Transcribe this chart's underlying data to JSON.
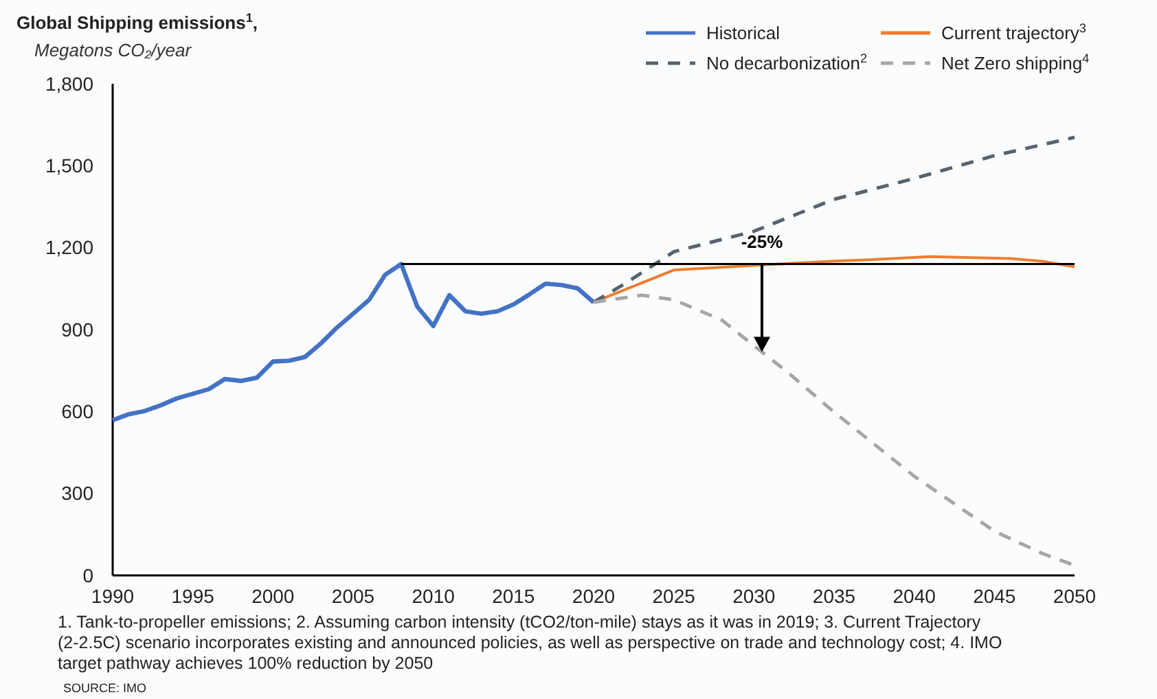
{
  "chart_data": {
    "type": "line",
    "title": "Global Shipping emissions$^{1}$,",
    "ylabel": "Megatons CO₂/year",
    "xlim": [
      1990,
      2050
    ],
    "xticks": [
      1990,
      1995,
      2000,
      2005,
      2010,
      2015,
      2020,
      2025,
      2030,
      2035,
      2040,
      2045,
      2050
    ],
    "ylim": [
      0,
      1800
    ],
    "yticks": [
      0,
      300,
      600,
      900,
      {
        "value": 1200,
        "label": "1,200"
      },
      {
        "value": 1500,
        "label": "1,500"
      },
      {
        "value": 1800,
        "label": "1,800"
      }
    ],
    "grid": false,
    "legend": "top right",
    "marker": "none",
    "series": [
      {
        "name": "Historical",
        "color": "#4472c4",
        "line_style": "solid",
        "x": [
          1990,
          1991,
          1992,
          1993,
          1994,
          1995,
          1996,
          1997,
          1998,
          1999,
          2000,
          2001,
          2002,
          2003,
          2004,
          2005,
          2006,
          2007,
          2008,
          2009,
          2010,
          2011,
          2012,
          2013,
          2014,
          2015,
          2016,
          2017,
          2018,
          2019,
          2020
        ],
        "values": [
          568,
          590,
          602,
          623,
          648,
          665,
          682,
          719,
          712,
          724,
          783,
          786,
          800,
          850,
          908,
          958,
          1009,
          1101,
          1140,
          984,
          913,
          1026,
          967,
          958,
          967,
          992,
          1029,
          1068,
          1063,
          1051,
          1000
        ]
      },
      {
        "name": "Current trajectory$^{3}$",
        "color": "#ed7d31",
        "line_style": "solid",
        "x": [
          2020,
          2025,
          2030,
          2035,
          2037,
          2041,
          2046,
          2048,
          2050
        ],
        "values": [
          1000,
          1118,
          1135,
          1151,
          1155,
          1167,
          1160,
          1150,
          1130
        ]
      },
      {
        "name": "No decarbonization$^{2}$",
        "color": "#56636e",
        "line_style": "dashed",
        "x": [
          2020,
          2022,
          2025,
          2030,
          2035,
          2040,
          2045,
          2050
        ],
        "values": [
          1000,
          1070,
          1185,
          1260,
          1377,
          1453,
          1537,
          1604
        ]
      },
      {
        "name": "Net Zero shipping$^{4}$",
        "color": "#a6a6a6",
        "line_style": "dashed",
        "x": [
          2020,
          2023,
          2025,
          2028,
          2030,
          2032,
          2035,
          2040,
          2045,
          2048,
          2050
        ],
        "values": [
          1000,
          1026,
          1009,
          935,
          841,
          749,
          598,
          363,
          162,
          80,
          37
        ]
      },
      {
        "color": "#000000",
        "line_style": "solid",
        "x": [
          2008,
          2050
        ],
        "values": [
          1140,
          1140
        ]
      }
    ],
    "annotations": [
      {
        "text": "-25%",
        "x": 2030.5,
        "y": 1140
      },
      "1. Tank-to-propeller emissions; 2. Assuming carbon intensity (tCO2/ton-mile) stays as it was in 2019; 3. Current Trajectory (2-2.5C) scenario incorporates existing and announced policies, as well as perspective on trade and technology cost; 4. IMO target pathway achieves 100% reduction by 2050",
      "SOURCE: IMO"
    ]
  }
}
